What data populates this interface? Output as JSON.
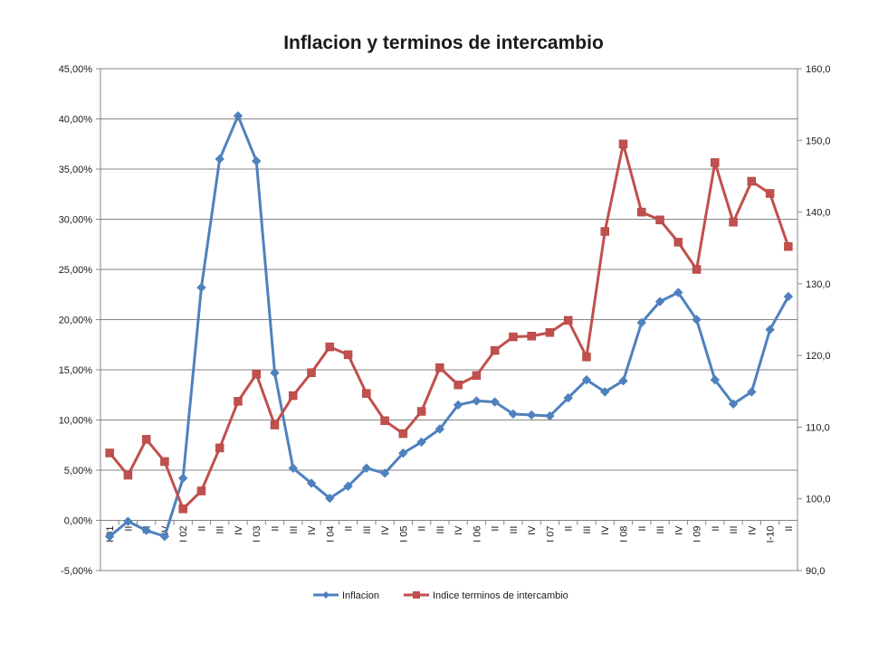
{
  "chart_data": {
    "type": "line",
    "title": "Inflacion y terminos de intercambio",
    "categories": [
      "I 01",
      "II",
      "III",
      "IV",
      "I 02",
      "II",
      "III",
      "IV",
      "I 03",
      "II",
      "III",
      "IV",
      "I 04",
      "II",
      "III",
      "IV",
      "I 05",
      "II",
      "III",
      "IV",
      "I 06",
      "II",
      "III",
      "IV",
      "I 07",
      "II",
      "III",
      "IV",
      "I 08",
      "II",
      "III",
      "IV",
      "I 09",
      "II",
      "III",
      "IV",
      "I-10",
      "II"
    ],
    "y_left": {
      "ylim": [
        -5,
        45
      ],
      "ticks": [
        "-5,00%",
        "0,00%",
        "5,00%",
        "10,00%",
        "15,00%",
        "20,00%",
        "25,00%",
        "30,00%",
        "35,00%",
        "40,00%",
        "45,00%"
      ],
      "tick_values": [
        -5,
        0,
        5,
        10,
        15,
        20,
        25,
        30,
        35,
        40,
        45
      ]
    },
    "y_right": {
      "ylim": [
        90,
        160
      ],
      "ticks": [
        "90,0",
        "100,0",
        "110,0",
        "120,0",
        "130,0",
        "140,0",
        "150,0",
        "160,0"
      ],
      "tick_values": [
        90,
        100,
        110,
        120,
        130,
        140,
        150,
        160
      ]
    },
    "grid": true,
    "legend_position": "bottom",
    "series": [
      {
        "name": "Inflacion",
        "axis": "left",
        "color": "#4F81BD",
        "marker": "diamond",
        "values": [
          -1.6,
          -0.1,
          -1.0,
          -1.6,
          4.2,
          23.2,
          36.0,
          40.3,
          35.8,
          14.7,
          5.2,
          3.7,
          2.2,
          3.4,
          5.2,
          4.7,
          6.7,
          7.8,
          9.1,
          11.5,
          11.9,
          11.8,
          10.6,
          10.5,
          10.4,
          12.2,
          14.0,
          12.8,
          13.9,
          19.7,
          21.8,
          22.7,
          20.0,
          14.0,
          11.6,
          12.8,
          19.0,
          22.3
        ]
      },
      {
        "name": "Indice terminos de intercambio",
        "axis": "right",
        "color": "#C0504D",
        "marker": "square",
        "values": [
          106.4,
          103.3,
          108.3,
          105.2,
          98.6,
          101.1,
          107.1,
          113.6,
          117.4,
          110.3,
          114.4,
          117.6,
          121.2,
          120.1,
          114.7,
          110.9,
          109.1,
          112.2,
          118.3,
          115.9,
          117.2,
          120.7,
          122.6,
          122.7,
          123.2,
          124.9,
          119.8,
          137.3,
          149.5,
          140.0,
          138.9,
          135.8,
          132.0,
          146.9,
          138.6,
          144.3,
          142.6,
          135.2
        ]
      }
    ]
  }
}
